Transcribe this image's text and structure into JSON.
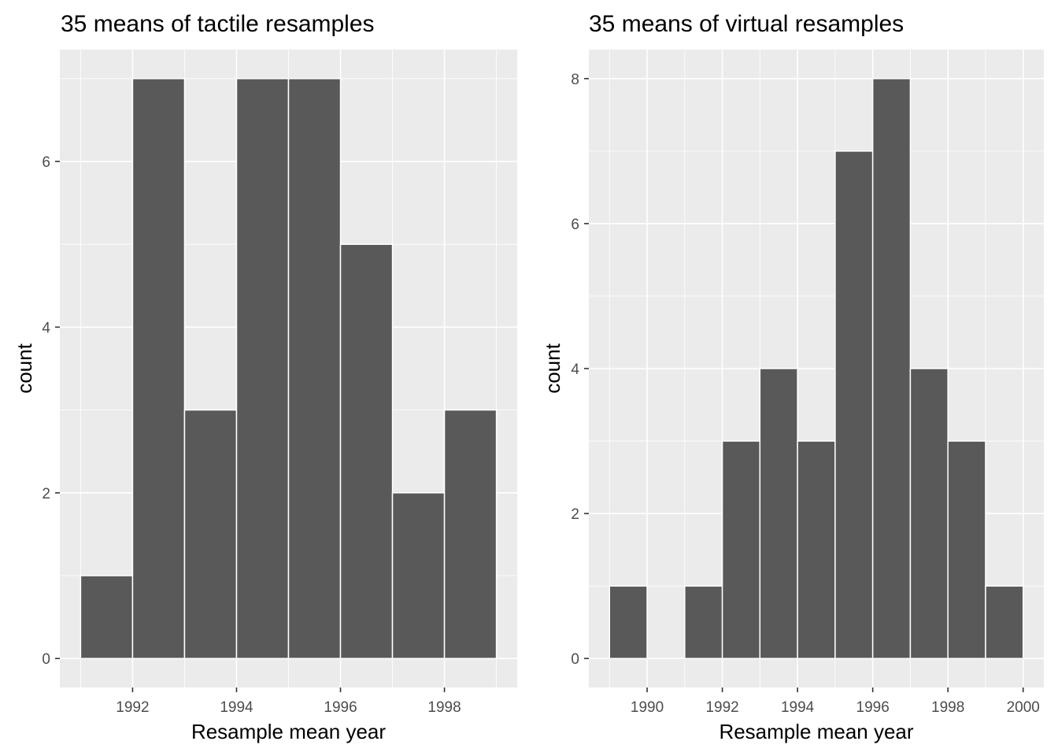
{
  "chart_data": [
    {
      "type": "bar",
      "title": "35 means of tactile resamples",
      "xlabel": "Resample mean year",
      "ylabel": "count",
      "xlim": [
        1990.6,
        1999.4
      ],
      "ylim": [
        -0.35,
        7.35
      ],
      "x_ticks": [
        1992,
        1994,
        1996,
        1998
      ],
      "y_ticks": [
        0,
        2,
        4,
        6
      ],
      "bins": [
        {
          "x0": 1991,
          "x1": 1992,
          "count": 1
        },
        {
          "x0": 1992,
          "x1": 1993,
          "count": 7
        },
        {
          "x0": 1993,
          "x1": 1994,
          "count": 3
        },
        {
          "x0": 1994,
          "x1": 1995,
          "count": 7
        },
        {
          "x0": 1995,
          "x1": 1996,
          "count": 7
        },
        {
          "x0": 1996,
          "x1": 1997,
          "count": 5
        },
        {
          "x0": 1997,
          "x1": 1998,
          "count": 2
        },
        {
          "x0": 1998,
          "x1": 1999,
          "count": 3
        }
      ],
      "grid": true,
      "colors": {
        "bar_fill": "#595959",
        "bar_edge": "#ffffff",
        "panel": "#ebebeb"
      }
    },
    {
      "type": "bar",
      "title": "35 means of virtual resamples",
      "xlabel": "Resample mean year",
      "ylabel": "count",
      "xlim": [
        1988.45,
        2000.55
      ],
      "ylim": [
        -0.4,
        8.4
      ],
      "x_ticks": [
        1990,
        1992,
        1994,
        1996,
        1998,
        2000
      ],
      "y_ticks": [
        0,
        2,
        4,
        6,
        8
      ],
      "bins": [
        {
          "x0": 1989,
          "x1": 1990,
          "count": 1
        },
        {
          "x0": 1990,
          "x1": 1991,
          "count": 0
        },
        {
          "x0": 1991,
          "x1": 1992,
          "count": 1
        },
        {
          "x0": 1992,
          "x1": 1993,
          "count": 3
        },
        {
          "x0": 1993,
          "x1": 1994,
          "count": 4
        },
        {
          "x0": 1994,
          "x1": 1995,
          "count": 3
        },
        {
          "x0": 1995,
          "x1": 1996,
          "count": 7
        },
        {
          "x0": 1996,
          "x1": 1997,
          "count": 8
        },
        {
          "x0": 1997,
          "x1": 1998,
          "count": 4
        },
        {
          "x0": 1998,
          "x1": 1999,
          "count": 3
        },
        {
          "x0": 1999,
          "x1": 2000,
          "count": 1
        }
      ],
      "grid": true,
      "colors": {
        "bar_fill": "#595959",
        "bar_edge": "#ffffff",
        "panel": "#ebebeb"
      }
    }
  ]
}
